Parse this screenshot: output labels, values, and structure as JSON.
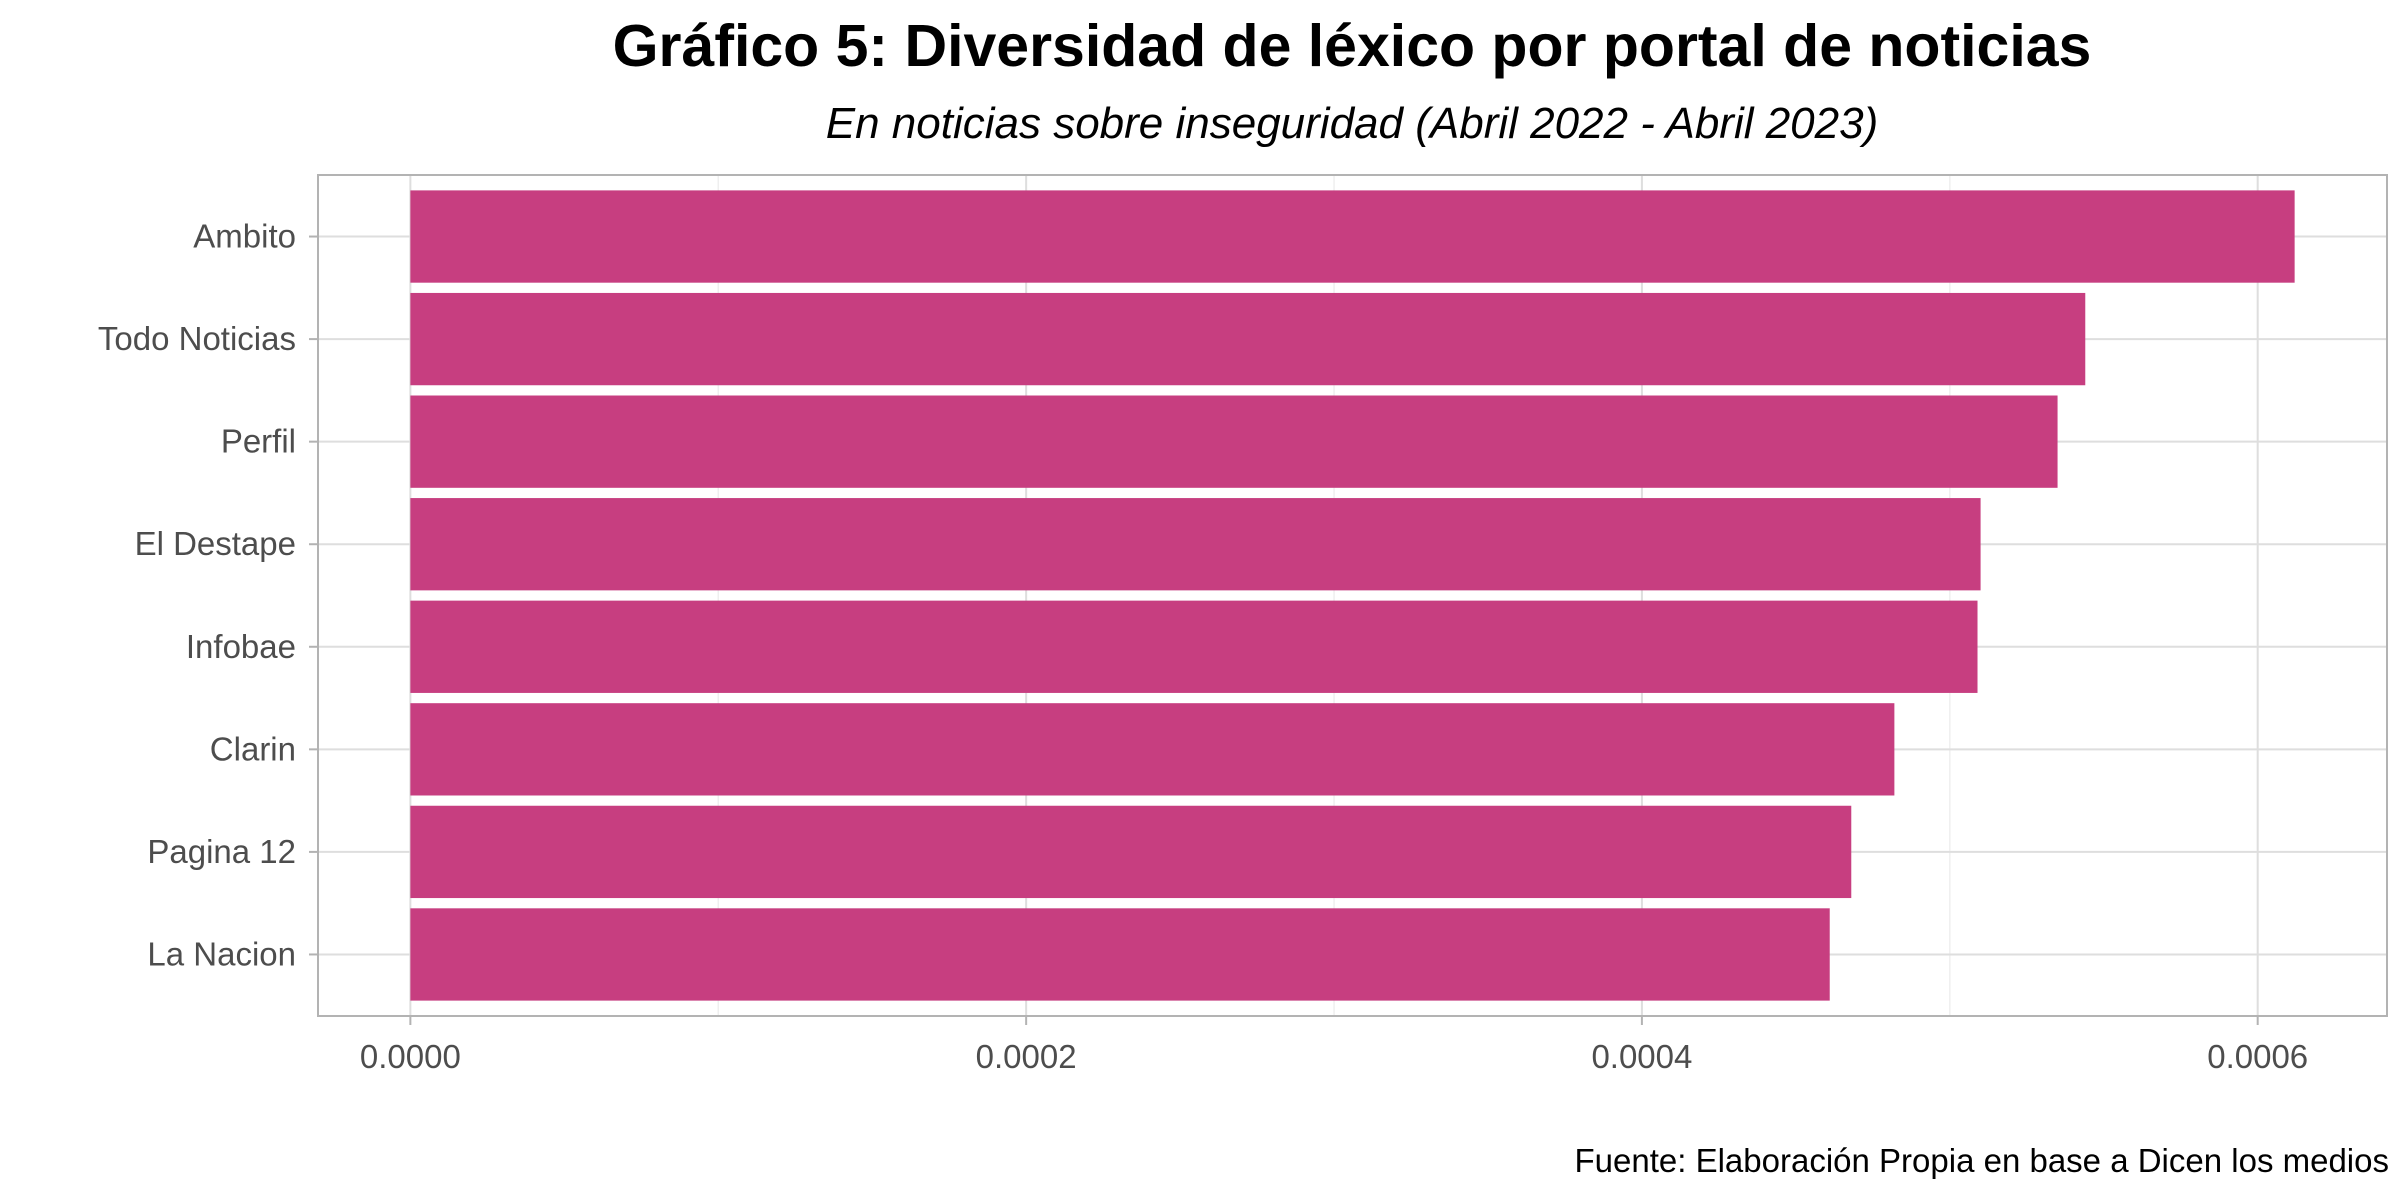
{
  "chart_data": {
    "type": "bar",
    "orientation": "horizontal",
    "title": "Gráfico 5: Diversidad de léxico por portal de noticias",
    "subtitle": "En noticias sobre inseguridad (Abril 2022 - Abril 2023)",
    "caption": "Fuente: Elaboración Propia en base a Dicen los medios",
    "xlabel": "",
    "ylabel": "",
    "categories": [
      "Ambito",
      "Todo Noticias",
      "Perfil",
      "El Destape",
      "Infobae",
      "Clarin",
      "Pagina 12",
      "La Nacion"
    ],
    "values": [
      0.000612,
      0.000544,
      0.000535,
      0.00051,
      0.000509,
      0.000482,
      0.000468,
      0.000461
    ],
    "xlim": [
      -3e-05,
      0.000642
    ],
    "x_ticks": [
      0.0,
      0.0002,
      0.0004,
      0.0006
    ],
    "x_tick_labels": [
      "0.0000",
      "0.0002",
      "0.0004",
      "0.0006"
    ],
    "grid": true,
    "legend": "none",
    "colors": {
      "bar": "#C73E80",
      "grid_major": "#dedede",
      "grid_minor": "#efefef",
      "panel_border": "#b3b3b3",
      "tick_text": "#4d4d4d"
    }
  }
}
